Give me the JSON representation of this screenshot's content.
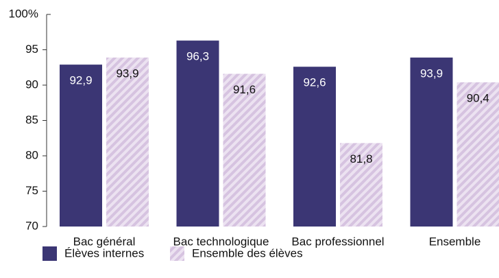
{
  "chart_data": {
    "type": "bar",
    "categories": [
      "Bac général",
      "Bac technologique",
      "Bac professionnel",
      "Ensemble"
    ],
    "series": [
      {
        "name": "Élèves internes",
        "color": "#3b3674",
        "values": [
          92.9,
          96.3,
          92.6,
          93.9
        ],
        "value_labels": [
          "92,9",
          "96,3",
          "92,6",
          "93,9"
        ]
      },
      {
        "name": "Ensemble des élèves",
        "color": "#d6c3e0",
        "pattern": "hatch",
        "values": [
          93.9,
          91.6,
          81.8,
          90.4
        ],
        "value_labels": [
          "93,9",
          "91,6",
          "81,8",
          "90,4"
        ]
      }
    ],
    "ylim": [
      70,
      100
    ],
    "yticks": [
      70,
      75,
      80,
      85,
      90,
      95,
      {
        "value": 100,
        "label": "100%"
      }
    ],
    "grid": false
  }
}
